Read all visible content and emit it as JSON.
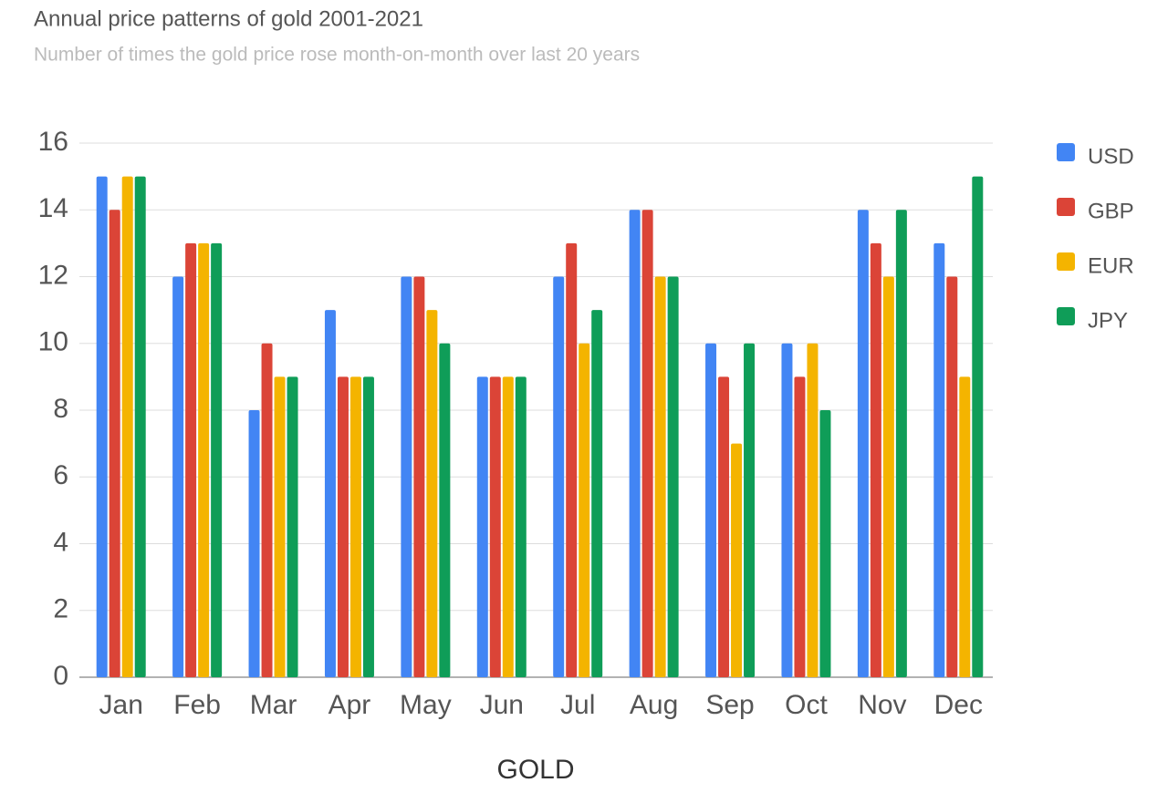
{
  "chart_data": {
    "type": "bar",
    "title": "Annual price patterns of gold 2001-2021",
    "subtitle": "Number of times the gold price rose month-on-month over last 20 years",
    "x_label": "GOLD",
    "categories": [
      "Jan",
      "Feb",
      "Mar",
      "Apr",
      "May",
      "Jun",
      "Jul",
      "Aug",
      "Sep",
      "Oct",
      "Nov",
      "Dec"
    ],
    "series": [
      {
        "name": "USD",
        "color": "#4285f4",
        "values": [
          15,
          12,
          8,
          11,
          12,
          9,
          12,
          14,
          10,
          10,
          14,
          13
        ]
      },
      {
        "name": "GBP",
        "color": "#db4437",
        "values": [
          14,
          13,
          10,
          9,
          12,
          9,
          13,
          14,
          9,
          9,
          13,
          12
        ]
      },
      {
        "name": "EUR",
        "color": "#f4b400",
        "values": [
          15,
          13,
          9,
          9,
          11,
          9,
          10,
          12,
          7,
          10,
          12,
          9
        ]
      },
      {
        "name": "JPY",
        "color": "#0f9d58",
        "values": [
          15,
          13,
          9,
          9,
          10,
          9,
          11,
          12,
          10,
          8,
          14,
          15
        ]
      }
    ],
    "ylim": [
      0,
      16
    ],
    "yticks": [
      0,
      2,
      4,
      6,
      8,
      10,
      12,
      14,
      16
    ],
    "grid": true,
    "legend": "right"
  }
}
